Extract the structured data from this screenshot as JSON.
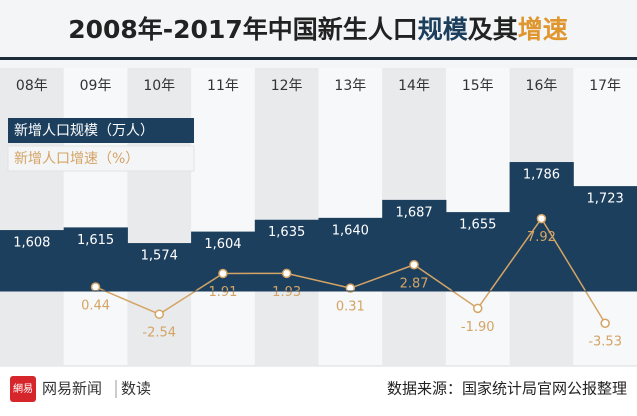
{
  "chart_data": {
    "type": "bar",
    "title_parts": [
      "2008年-2017年中国新生人口",
      "规模",
      "及其",
      "增速"
    ],
    "categories": [
      "08年",
      "09年",
      "10年",
      "11年",
      "12年",
      "13年",
      "14年",
      "15年",
      "16年",
      "17年"
    ],
    "series": [
      {
        "name": "新增人口规模（万人）",
        "color": "#1d3f5e",
        "type": "bar",
        "values": [
          1608,
          1615,
          1574,
          1604,
          1635,
          1640,
          1687,
          1655,
          1786,
          1723
        ],
        "value_labels": [
          "1,608",
          "1,615",
          "1,574",
          "1,604",
          "1,635",
          "1,640",
          "1,687",
          "1,655",
          "1,786",
          "1,723"
        ]
      },
      {
        "name": "新增人口增速（%）",
        "color": "#d4a465",
        "type": "line",
        "axis": "y2",
        "values": [
          null,
          0.44,
          -2.54,
          1.91,
          1.93,
          0.31,
          2.87,
          -1.9,
          7.92,
          -3.53
        ],
        "value_labels": [
          null,
          "0.44",
          "-2.54",
          "1.91",
          "1.93",
          "0.31",
          "2.87",
          "-1.90",
          "7.92",
          "-3.53"
        ]
      }
    ],
    "ylim": [
      1255,
      2032
    ],
    "y2lim": [
      -8.1,
      24.4
    ],
    "legend": "top-left",
    "brand": "网易新闻",
    "section": "数读",
    "logo": "網易",
    "source": "数据来源：国家统计局官网公报整理"
  }
}
